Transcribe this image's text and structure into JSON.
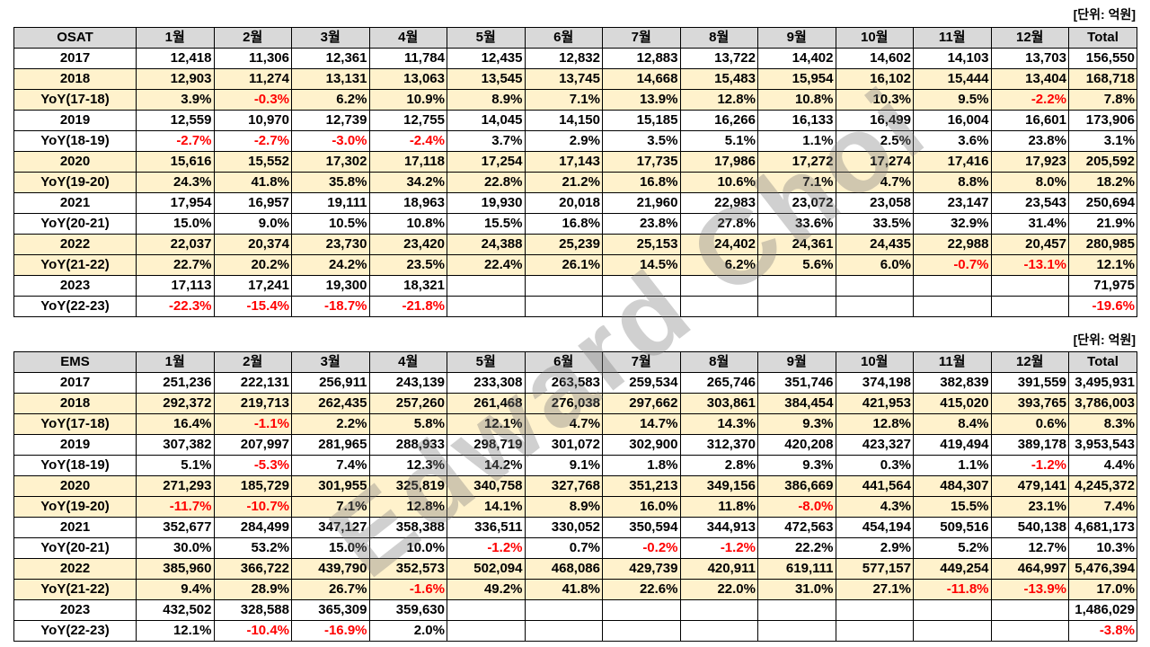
{
  "unit_label": "[단위: 억원]",
  "watermark": "Edward Choi",
  "header_months": [
    "1월",
    "2월",
    "3월",
    "4월",
    "5월",
    "6월",
    "7월",
    "8월",
    "9월",
    "10월",
    "11월",
    "12월"
  ],
  "header_total": "Total",
  "colors": {
    "header_bg": "#d9d9d9",
    "highlight_bg": "#fff2cc",
    "negative": "#ff0000"
  },
  "tables": [
    {
      "title": "OSAT",
      "rows": [
        {
          "label": "2017",
          "hl": false,
          "cells": [
            "12,418",
            "11,306",
            "12,361",
            "11,784",
            "12,435",
            "12,832",
            "12,883",
            "13,722",
            "14,402",
            "14,602",
            "14,103",
            "13,703",
            "156,550"
          ]
        },
        {
          "label": "2018",
          "hl": true,
          "cells": [
            "12,903",
            "11,274",
            "13,131",
            "13,063",
            "13,545",
            "13,745",
            "14,668",
            "15,483",
            "15,954",
            "16,102",
            "15,444",
            "13,404",
            "168,718"
          ]
        },
        {
          "label": "YoY(17-18)",
          "hl": true,
          "cells": [
            "3.9%",
            "-0.3%",
            "6.2%",
            "10.9%",
            "8.9%",
            "7.1%",
            "13.9%",
            "12.8%",
            "10.8%",
            "10.3%",
            "9.5%",
            "-2.2%",
            "7.8%"
          ]
        },
        {
          "label": "2019",
          "hl": false,
          "cells": [
            "12,559",
            "10,970",
            "12,739",
            "12,755",
            "14,045",
            "14,150",
            "15,185",
            "16,266",
            "16,133",
            "16,499",
            "16,004",
            "16,601",
            "173,906"
          ]
        },
        {
          "label": "YoY(18-19)",
          "hl": false,
          "cells": [
            "-2.7%",
            "-2.7%",
            "-3.0%",
            "-2.4%",
            "3.7%",
            "2.9%",
            "3.5%",
            "5.1%",
            "1.1%",
            "2.5%",
            "3.6%",
            "23.8%",
            "3.1%"
          ]
        },
        {
          "label": "2020",
          "hl": true,
          "cells": [
            "15,616",
            "15,552",
            "17,302",
            "17,118",
            "17,254",
            "17,143",
            "17,735",
            "17,986",
            "17,272",
            "17,274",
            "17,416",
            "17,923",
            "205,592"
          ]
        },
        {
          "label": "YoY(19-20)",
          "hl": true,
          "cells": [
            "24.3%",
            "41.8%",
            "35.8%",
            "34.2%",
            "22.8%",
            "21.2%",
            "16.8%",
            "10.6%",
            "7.1%",
            "4.7%",
            "8.8%",
            "8.0%",
            "18.2%"
          ]
        },
        {
          "label": "2021",
          "hl": false,
          "cells": [
            "17,954",
            "16,957",
            "19,111",
            "18,963",
            "19,930",
            "20,018",
            "21,960",
            "22,983",
            "23,072",
            "23,058",
            "23,147",
            "23,543",
            "250,694"
          ]
        },
        {
          "label": "YoY(20-21)",
          "hl": false,
          "cells": [
            "15.0%",
            "9.0%",
            "10.5%",
            "10.8%",
            "15.5%",
            "16.8%",
            "23.8%",
            "27.8%",
            "33.6%",
            "33.5%",
            "32.9%",
            "31.4%",
            "21.9%"
          ]
        },
        {
          "label": "2022",
          "hl": true,
          "cells": [
            "22,037",
            "20,374",
            "23,730",
            "23,420",
            "24,388",
            "25,239",
            "25,153",
            "24,402",
            "24,361",
            "24,435",
            "22,988",
            "20,457",
            "280,985"
          ]
        },
        {
          "label": "YoY(21-22)",
          "hl": true,
          "cells": [
            "22.7%",
            "20.2%",
            "24.2%",
            "23.5%",
            "22.4%",
            "26.1%",
            "14.5%",
            "6.2%",
            "5.6%",
            "6.0%",
            "-0.7%",
            "-13.1%",
            "12.1%"
          ]
        },
        {
          "label": "2023",
          "hl": false,
          "cells": [
            "17,113",
            "17,241",
            "19,300",
            "18,321",
            "",
            "",
            "",
            "",
            "",
            "",
            "",
            "",
            "71,975"
          ]
        },
        {
          "label": "YoY(22-23)",
          "hl": false,
          "cells": [
            "-22.3%",
            "-15.4%",
            "-18.7%",
            "-21.8%",
            "",
            "",
            "",
            "",
            "",
            "",
            "",
            "",
            "-19.6%"
          ]
        }
      ]
    },
    {
      "title": "EMS",
      "rows": [
        {
          "label": "2017",
          "hl": false,
          "cells": [
            "251,236",
            "222,131",
            "256,911",
            "243,139",
            "233,308",
            "263,583",
            "259,534",
            "265,746",
            "351,746",
            "374,198",
            "382,839",
            "391,559",
            "3,495,931"
          ]
        },
        {
          "label": "2018",
          "hl": true,
          "cells": [
            "292,372",
            "219,713",
            "262,435",
            "257,260",
            "261,468",
            "276,038",
            "297,662",
            "303,861",
            "384,454",
            "421,953",
            "415,020",
            "393,765",
            "3,786,003"
          ]
        },
        {
          "label": "YoY(17-18)",
          "hl": true,
          "cells": [
            "16.4%",
            "-1.1%",
            "2.2%",
            "5.8%",
            "12.1%",
            "4.7%",
            "14.7%",
            "14.3%",
            "9.3%",
            "12.8%",
            "8.4%",
            "0.6%",
            "8.3%"
          ]
        },
        {
          "label": "2019",
          "hl": false,
          "cells": [
            "307,382",
            "207,997",
            "281,965",
            "288,933",
            "298,719",
            "301,072",
            "302,900",
            "312,370",
            "420,208",
            "423,327",
            "419,494",
            "389,178",
            "3,953,543"
          ]
        },
        {
          "label": "YoY(18-19)",
          "hl": false,
          "cells": [
            "5.1%",
            "-5.3%",
            "7.4%",
            "12.3%",
            "14.2%",
            "9.1%",
            "1.8%",
            "2.8%",
            "9.3%",
            "0.3%",
            "1.1%",
            "-1.2%",
            "4.4%"
          ]
        },
        {
          "label": "2020",
          "hl": true,
          "cells": [
            "271,293",
            "185,729",
            "301,955",
            "325,819",
            "340,758",
            "327,768",
            "351,213",
            "349,156",
            "386,669",
            "441,564",
            "484,307",
            "479,141",
            "4,245,372"
          ]
        },
        {
          "label": "YoY(19-20)",
          "hl": true,
          "cells": [
            "-11.7%",
            "-10.7%",
            "7.1%",
            "12.8%",
            "14.1%",
            "8.9%",
            "16.0%",
            "11.8%",
            "-8.0%",
            "4.3%",
            "15.5%",
            "23.1%",
            "7.4%"
          ]
        },
        {
          "label": "2021",
          "hl": false,
          "cells": [
            "352,677",
            "284,499",
            "347,127",
            "358,388",
            "336,511",
            "330,052",
            "350,594",
            "344,913",
            "472,563",
            "454,194",
            "509,516",
            "540,138",
            "4,681,173"
          ]
        },
        {
          "label": "YoY(20-21)",
          "hl": false,
          "cells": [
            "30.0%",
            "53.2%",
            "15.0%",
            "10.0%",
            "-1.2%",
            "0.7%",
            "-0.2%",
            "-1.2%",
            "22.2%",
            "2.9%",
            "5.2%",
            "12.7%",
            "10.3%"
          ]
        },
        {
          "label": "2022",
          "hl": true,
          "cells": [
            "385,960",
            "366,722",
            "439,790",
            "352,573",
            "502,094",
            "468,086",
            "429,739",
            "420,911",
            "619,111",
            "577,157",
            "449,254",
            "464,997",
            "5,476,394"
          ]
        },
        {
          "label": "YoY(21-22)",
          "hl": true,
          "cells": [
            "9.4%",
            "28.9%",
            "26.7%",
            "-1.6%",
            "49.2%",
            "41.8%",
            "22.6%",
            "22.0%",
            "31.0%",
            "27.1%",
            "-11.8%",
            "-13.9%",
            "17.0%"
          ]
        },
        {
          "label": "2023",
          "hl": false,
          "cells": [
            "432,502",
            "328,588",
            "365,309",
            "359,630",
            "",
            "",
            "",
            "",
            "",
            "",
            "",
            "",
            "1,486,029"
          ]
        },
        {
          "label": "YoY(22-23)",
          "hl": false,
          "cells": [
            "12.1%",
            "-10.4%",
            "-16.9%",
            "2.0%",
            "",
            "",
            "",
            "",
            "",
            "",
            "",
            "",
            "-3.8%"
          ]
        }
      ]
    }
  ]
}
